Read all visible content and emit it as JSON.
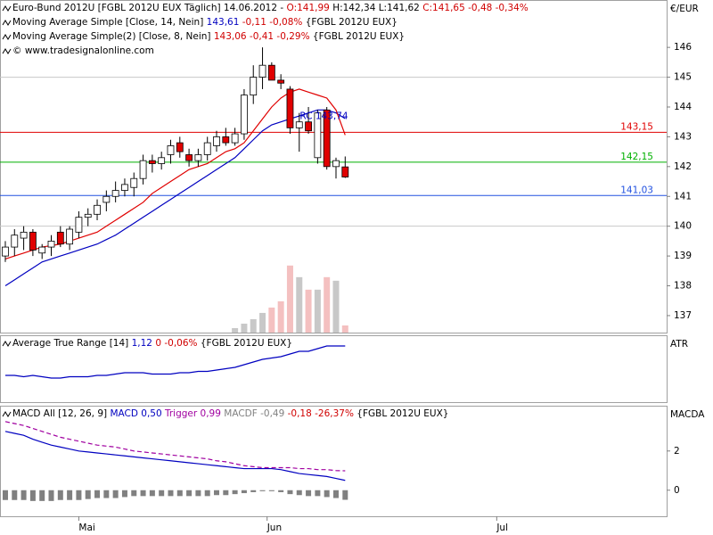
{
  "chart_data": [
    {
      "type": "candlestick",
      "legend": [
        [
          {
            "text": "Euro-Bund 2012U [FGBL 2012U EUX  Täglich] 14.06.2012 - ",
            "color": "#000000"
          },
          {
            "text": "O:141,99",
            "color": "#d00000"
          },
          {
            "text": " H:142,34 L:141,62 ",
            "color": "#000000"
          },
          {
            "text": "C:141,65 -0,48 -0,34%",
            "color": "#d00000"
          }
        ],
        [
          {
            "text": "Moving Average Simple [Close, 14, Nein] ",
            "color": "#000000"
          },
          {
            "text": "143,61",
            "color": "#0000c0"
          },
          {
            "text": " -0,11 -0,08% ",
            "color": "#d00000"
          },
          {
            "text": "{FGBL 2012U EUX}",
            "color": "#000000"
          }
        ],
        [
          {
            "text": "Moving Average Simple(2) [Close, 8, Nein] ",
            "color": "#000000"
          },
          {
            "text": "143,06 -0,41 -0,29% ",
            "color": "#d00000"
          },
          {
            "text": "{FGBL 2012U EUX}",
            "color": "#000000"
          }
        ],
        [
          {
            "text": "© www.tradesignalonline.com",
            "color": "#000000"
          }
        ]
      ],
      "unit": "€/EUR",
      "xlim": [
        -0.58,
        72
      ],
      "ylim": [
        136.43,
        147.59
      ],
      "yticks": [
        137,
        138,
        139,
        140,
        141,
        142,
        143,
        144,
        145,
        146
      ],
      "grid_lines": [
        140,
        145
      ],
      "up_color": "#ffffff",
      "down_color": "#e00000",
      "open": [
        139.0,
        139.3,
        139.6,
        139.8,
        139.1,
        139.3,
        139.8,
        139.4,
        139.8,
        140.3,
        140.4,
        140.8,
        141.0,
        141.2,
        141.3,
        141.6,
        142.2,
        142.1,
        142.4,
        142.8,
        142.4,
        142.2,
        142.4,
        142.7,
        143.0,
        142.8,
        143.1,
        144.4,
        145.0,
        145.4,
        144.9,
        144.6,
        143.3,
        143.5,
        142.3,
        143.9,
        142.0,
        141.99
      ],
      "high": [
        139.5,
        139.9,
        140.0,
        139.9,
        139.4,
        139.7,
        140.0,
        140.0,
        140.5,
        140.6,
        140.9,
        141.2,
        141.5,
        141.6,
        141.8,
        142.4,
        142.4,
        142.5,
        142.9,
        143.0,
        142.6,
        142.6,
        143.0,
        143.2,
        143.3,
        143.3,
        144.6,
        145.4,
        146.0,
        145.5,
        145.1,
        144.7,
        143.8,
        144.0,
        143.9,
        144.0,
        142.3,
        142.34
      ],
      "low": [
        138.8,
        139.0,
        139.2,
        139.0,
        138.9,
        139.0,
        139.3,
        139.2,
        139.6,
        140.0,
        140.2,
        140.5,
        140.8,
        141.0,
        141.0,
        141.4,
        141.8,
        141.9,
        142.1,
        142.3,
        142.0,
        142.0,
        142.2,
        142.5,
        142.7,
        142.7,
        142.9,
        144.1,
        144.6,
        144.9,
        144.6,
        143.1,
        142.5,
        143.1,
        142.1,
        141.9,
        141.6,
        141.62
      ],
      "close": [
        139.3,
        139.7,
        139.8,
        139.2,
        139.3,
        139.5,
        139.4,
        139.9,
        140.3,
        140.4,
        140.7,
        141.0,
        141.2,
        141.4,
        141.6,
        142.2,
        142.1,
        142.3,
        142.7,
        142.5,
        142.2,
        142.4,
        142.8,
        143.0,
        142.8,
        143.1,
        144.4,
        145.0,
        145.4,
        144.9,
        144.8,
        143.3,
        143.5,
        143.2,
        143.8,
        142.0,
        142.2,
        141.65
      ],
      "series": [
        {
          "color": "#0000c0",
          "values": [
            138.0,
            138.2,
            138.4,
            138.6,
            138.8,
            138.9,
            139.0,
            139.1,
            139.2,
            139.3,
            139.4,
            139.55,
            139.7,
            139.9,
            140.1,
            140.3,
            140.5,
            140.7,
            140.9,
            141.1,
            141.3,
            141.5,
            141.7,
            141.9,
            142.1,
            142.3,
            142.6,
            142.9,
            143.2,
            143.4,
            143.5,
            143.6,
            143.7,
            143.8,
            143.9,
            143.9,
            143.8,
            143.61
          ]
        },
        {
          "color": "#e00000",
          "values": [
            138.9,
            139.0,
            139.1,
            139.2,
            139.3,
            139.35,
            139.4,
            139.5,
            139.6,
            139.7,
            139.8,
            140.0,
            140.2,
            140.4,
            140.6,
            140.8,
            141.1,
            141.3,
            141.5,
            141.7,
            141.9,
            142.0,
            142.1,
            142.3,
            142.5,
            142.6,
            142.8,
            143.2,
            143.6,
            144.0,
            144.3,
            144.5,
            144.6,
            144.5,
            144.4,
            144.3,
            143.9,
            143.06
          ]
        }
      ],
      "levels": [
        {
          "value": 143.15,
          "label": "143,15",
          "color": "#e00000"
        },
        {
          "value": 142.15,
          "label": "142,15",
          "color": "#00b000"
        },
        {
          "value": 141.03,
          "label": "141,03",
          "color": "#2050e0"
        }
      ],
      "annotations": [
        {
          "value": 143.74,
          "label": "RC 143,74",
          "color": "#0000c0"
        }
      ],
      "volume": [
        null,
        null,
        null,
        null,
        null,
        null,
        null,
        null,
        null,
        null,
        null,
        null,
        null,
        null,
        null,
        null,
        null,
        null,
        null,
        null,
        null,
        null,
        null,
        null,
        null,
        5,
        10,
        15,
        22,
        28,
        35,
        75,
        62,
        48,
        48,
        62,
        58,
        8
      ],
      "volume_lim": [
        0,
        372
      ],
      "volume_colors": [
        "#c8c8c8",
        "#f4c0c0"
      ]
    },
    {
      "type": "line",
      "legend": [
        [
          {
            "text": "Average True Range [14] ",
            "color": "#000000"
          },
          {
            "text": "1,12",
            "color": "#0000c0"
          },
          {
            "text": " 0 -0,06% ",
            "color": "#d00000"
          },
          {
            "text": "{FGBL 2012U EUX}",
            "color": "#000000"
          }
        ]
      ],
      "unit": "ATR",
      "xlim": [
        -0.58,
        72
      ],
      "ylim": [
        0.7,
        1.2
      ],
      "series": [
        {
          "color": "#0000c0",
          "values": [
            0.9,
            0.9,
            0.89,
            0.9,
            0.89,
            0.88,
            0.88,
            0.89,
            0.89,
            0.89,
            0.9,
            0.9,
            0.91,
            0.92,
            0.92,
            0.92,
            0.91,
            0.91,
            0.91,
            0.92,
            0.92,
            0.93,
            0.93,
            0.94,
            0.95,
            0.96,
            0.98,
            1.0,
            1.02,
            1.03,
            1.04,
            1.06,
            1.08,
            1.08,
            1.1,
            1.12,
            1.12,
            1.12
          ]
        }
      ]
    },
    {
      "type": "macd",
      "legend": [
        [
          {
            "text": "MACD All [12, 26, 9] ",
            "color": "#000000"
          },
          {
            "text": "MACD 0,50 ",
            "color": "#0000c0"
          },
          {
            "text": "Trigger 0,99 ",
            "color": "#a000a0"
          },
          {
            "text": "MACDF -0,49 ",
            "color": "#808080"
          },
          {
            "text": "-0,18 -26,37% ",
            "color": "#d00000"
          },
          {
            "text": "{FGBL 2012U EUX}",
            "color": "#000000"
          }
        ]
      ],
      "unit": "MACDA",
      "xlim": [
        -0.58,
        72
      ],
      "ylim": [
        -1.33,
        4.31
      ],
      "yticks": [
        0,
        2
      ],
      "xticks": [
        {
          "value": 8,
          "label": "Mai"
        },
        {
          "value": 28.5,
          "label": "Jun"
        },
        {
          "value": 53.5,
          "label": "Jul"
        }
      ],
      "series": [
        {
          "color": "#0000c0",
          "dash": false,
          "values": [
            3.0,
            2.9,
            2.8,
            2.6,
            2.45,
            2.3,
            2.2,
            2.1,
            2.0,
            1.95,
            1.9,
            1.85,
            1.8,
            1.75,
            1.7,
            1.65,
            1.6,
            1.55,
            1.5,
            1.45,
            1.4,
            1.35,
            1.3,
            1.25,
            1.2,
            1.15,
            1.1,
            1.1,
            1.1,
            1.1,
            1.05,
            0.95,
            0.85,
            0.8,
            0.75,
            0.7,
            0.6,
            0.5
          ]
        },
        {
          "color": "#a000a0",
          "dash": true,
          "values": [
            3.5,
            3.4,
            3.3,
            3.15,
            3.0,
            2.85,
            2.7,
            2.6,
            2.5,
            2.4,
            2.3,
            2.25,
            2.2,
            2.1,
            2.0,
            1.95,
            1.9,
            1.85,
            1.8,
            1.75,
            1.7,
            1.65,
            1.6,
            1.5,
            1.45,
            1.35,
            1.25,
            1.2,
            1.15,
            1.15,
            1.15,
            1.15,
            1.1,
            1.1,
            1.05,
            1.05,
            1.0,
            0.99
          ]
        }
      ],
      "histogram": {
        "color": "#808080",
        "values": [
          -0.5,
          -0.5,
          -0.5,
          -0.55,
          -0.55,
          -0.55,
          -0.5,
          -0.5,
          -0.5,
          -0.45,
          -0.4,
          -0.4,
          -0.4,
          -0.35,
          -0.3,
          -0.3,
          -0.3,
          -0.3,
          -0.3,
          -0.3,
          -0.3,
          -0.3,
          -0.3,
          -0.25,
          -0.25,
          -0.2,
          -0.15,
          -0.1,
          -0.05,
          -0.05,
          -0.1,
          -0.2,
          -0.25,
          -0.3,
          -0.3,
          -0.35,
          -0.4,
          -0.49
        ]
      }
    }
  ]
}
